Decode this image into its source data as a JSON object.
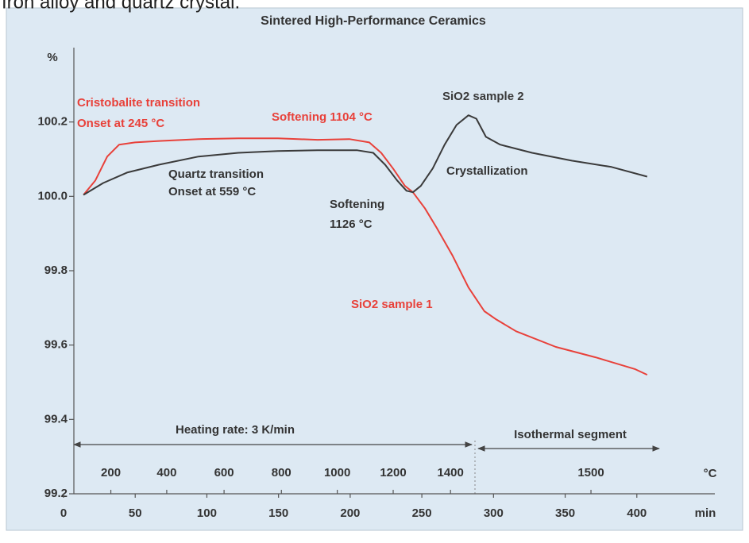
{
  "page_note": "Iron alloy and quartz crystal.",
  "chart_data": {
    "type": "line",
    "title": "Sintered High-Performance Ceramics",
    "ylabel": "%",
    "xlabel": "min",
    "x2label": "°C",
    "xlim": [
      0,
      450
    ],
    "xticks": [
      0,
      50,
      100,
      150,
      200,
      250,
      300,
      350,
      400
    ],
    "x2ticks": [
      {
        "value": 33,
        "label": "200"
      },
      {
        "value": 72,
        "label": "400"
      },
      {
        "value": 112,
        "label": "600"
      },
      {
        "value": 152,
        "label": "800"
      },
      {
        "value": 191,
        "label": "1000"
      },
      {
        "value": 230,
        "label": "1200"
      },
      {
        "value": 270,
        "label": "1400"
      },
      {
        "value": 368,
        "label": "1500"
      }
    ],
    "ylim": [
      99.2,
      100.4
    ],
    "yticks": [
      99.2,
      99.4,
      99.6,
      99.8,
      {
        "value": 100,
        "label": "100.0"
      },
      100.2
    ],
    "series": [
      {
        "name": "SiO2 sample 1",
        "color": "#e8413a",
        "x": [
          13.9,
          22.2,
          30.5,
          38.8,
          49.9,
          66.5,
          94.2,
          121.9,
          149.6,
          177.3,
          199.4,
          213.3,
          221.6,
          229.9,
          238.2,
          243.8,
          252.1,
          260.4,
          271.5,
          282.5,
          293.6,
          301.9,
          315.8,
          343.5,
          371.2,
          398.9,
          407.2
        ],
        "values": [
          100.004,
          100.043,
          100.107,
          100.139,
          100.145,
          100.149,
          100.154,
          100.156,
          100.156,
          100.152,
          100.154,
          100.145,
          100.117,
          100.075,
          100.028,
          100.011,
          99.968,
          99.915,
          99.84,
          99.755,
          99.691,
          99.669,
          99.637,
          99.595,
          99.567,
          99.535,
          99.52
        ]
      },
      {
        "name": "SiO2 sample 2",
        "color": "#3a3a3a",
        "x": [
          13.9,
          27.7,
          44.3,
          66.5,
          94.2,
          121.9,
          149.6,
          177.3,
          205.0,
          216.1,
          224.4,
          232.7,
          239.3,
          243.8,
          249.3,
          257.6,
          265.9,
          274.2,
          282.5,
          288.0,
          294.7,
          304.7,
          326.9,
          354.6,
          382.3,
          407.2
        ],
        "values": [
          100.004,
          100.036,
          100.064,
          100.085,
          100.107,
          100.117,
          100.122,
          100.124,
          100.124,
          100.117,
          100.085,
          100.043,
          100.015,
          100.011,
          100.028,
          100.075,
          100.139,
          100.192,
          100.218,
          100.209,
          100.16,
          100.139,
          100.117,
          100.096,
          100.079,
          100.053
        ]
      }
    ],
    "annotations": [
      {
        "text": "Cristobalite transition",
        "color": "#e8413a"
      },
      {
        "text": "Onset at 245 °C",
        "color": "#e8413a"
      },
      {
        "text": "Softening 1104 °C",
        "color": "#e8413a"
      },
      {
        "text": "Quartz transition",
        "color": "#333333"
      },
      {
        "text": "Onset at 559 °C",
        "color": "#333333"
      },
      {
        "text": "Softening",
        "color": "#333333"
      },
      {
        "text": "1126 °C",
        "color": "#333333"
      },
      {
        "text": "Crystallization",
        "color": "#333333"
      },
      {
        "text": "Heating rate: 3 K/min",
        "color": "#333333"
      },
      {
        "text": "Isothermal segment",
        "color": "#333333"
      }
    ]
  }
}
